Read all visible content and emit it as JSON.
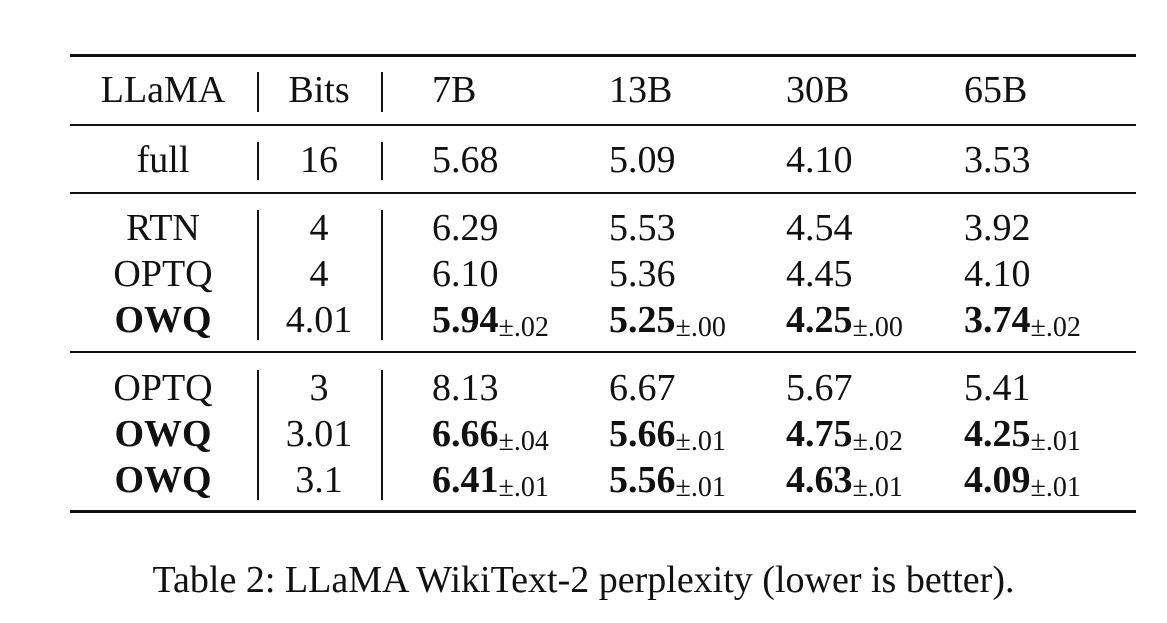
{
  "table": {
    "headers": {
      "model": "LLaMA",
      "bits": "Bits",
      "sizes": [
        "7B",
        "13B",
        "30B",
        "65B"
      ]
    },
    "groups": [
      [
        {
          "method": "full",
          "bits": "16",
          "bold": false,
          "values": [
            {
              "v": "5.68",
              "pm": ""
            },
            {
              "v": "5.09",
              "pm": ""
            },
            {
              "v": "4.10",
              "pm": ""
            },
            {
              "v": "3.53",
              "pm": ""
            }
          ]
        }
      ],
      [
        {
          "method": "RTN",
          "bits": "4",
          "bold": false,
          "values": [
            {
              "v": "6.29",
              "pm": ""
            },
            {
              "v": "5.53",
              "pm": ""
            },
            {
              "v": "4.54",
              "pm": ""
            },
            {
              "v": "3.92",
              "pm": ""
            }
          ]
        },
        {
          "method": "OPTQ",
          "bits": "4",
          "bold": false,
          "values": [
            {
              "v": "6.10",
              "pm": ""
            },
            {
              "v": "5.36",
              "pm": ""
            },
            {
              "v": "4.45",
              "pm": ""
            },
            {
              "v": "4.10",
              "pm": ""
            }
          ]
        },
        {
          "method": "OWQ",
          "bits": "4.01",
          "bold": true,
          "values": [
            {
              "v": "5.94",
              "pm": "±.02"
            },
            {
              "v": "5.25",
              "pm": "±.00"
            },
            {
              "v": "4.25",
              "pm": "±.00"
            },
            {
              "v": "3.74",
              "pm": "±.02"
            }
          ]
        }
      ],
      [
        {
          "method": "OPTQ",
          "bits": "3",
          "bold": false,
          "values": [
            {
              "v": "8.13",
              "pm": ""
            },
            {
              "v": "6.67",
              "pm": ""
            },
            {
              "v": "5.67",
              "pm": ""
            },
            {
              "v": "5.41",
              "pm": ""
            }
          ]
        },
        {
          "method": "OWQ",
          "bits": "3.01",
          "bold": true,
          "values": [
            {
              "v": "6.66",
              "pm": "±.04"
            },
            {
              "v": "5.66",
              "pm": "±.01"
            },
            {
              "v": "4.75",
              "pm": "±.02"
            },
            {
              "v": "4.25",
              "pm": "±.01"
            }
          ]
        },
        {
          "method": "OWQ",
          "bits": "3.1",
          "bold": true,
          "values": [
            {
              "v": "6.41",
              "pm": "±.01"
            },
            {
              "v": "5.56",
              "pm": "±.01"
            },
            {
              "v": "4.63",
              "pm": "±.01"
            },
            {
              "v": "4.09",
              "pm": "±.01"
            }
          ]
        }
      ]
    ]
  },
  "caption": "Table 2: LLaMA WikiText-2 perplexity (lower is better)."
}
